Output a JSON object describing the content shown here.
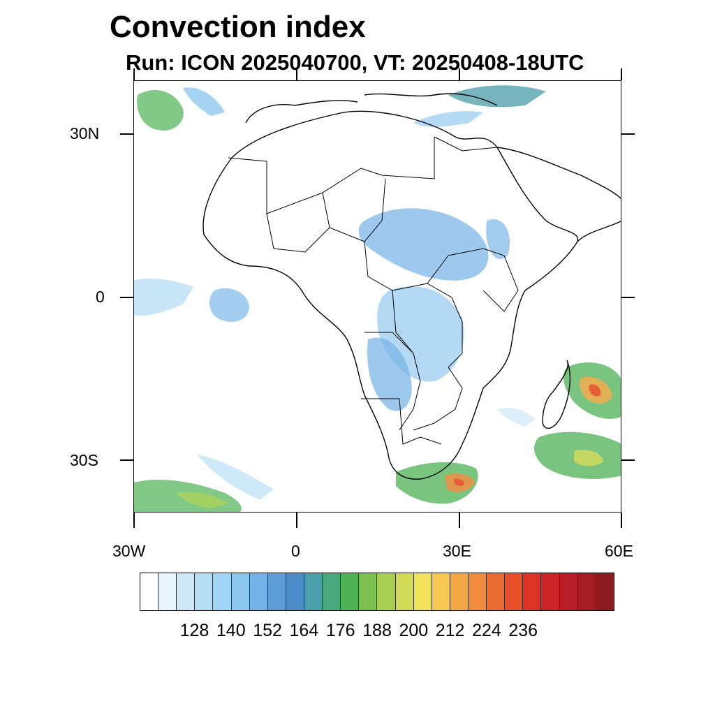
{
  "title": "Convection index",
  "subtitle": "Run: ICON 2025040700,  VT: 20250408-18UTC",
  "axes": {
    "lat_labels": [
      "30N",
      "0",
      "30S"
    ],
    "lon_labels": [
      "30W",
      "0",
      "30E",
      "60E"
    ]
  },
  "colorbar": {
    "colors": [
      "#ffffff",
      "#e8f4fc",
      "#cfe8f7",
      "#b5ddf4",
      "#a0d6f5",
      "#8bc6ee",
      "#74b3e5",
      "#5c9ed8",
      "#4a8dc8",
      "#4a9ea9",
      "#48a77c",
      "#4fb256",
      "#7cc050",
      "#a8cf52",
      "#cfd956",
      "#f0e25a",
      "#f7c84f",
      "#f4a844",
      "#f08b3b",
      "#eb6b31",
      "#e5502b",
      "#dd3327",
      "#cc2327",
      "#b71e27",
      "#a31c22",
      "#8f1a1e"
    ],
    "labels": [
      "128",
      "140",
      "152",
      "164",
      "176",
      "188",
      "200",
      "212",
      "224",
      "236"
    ]
  }
}
